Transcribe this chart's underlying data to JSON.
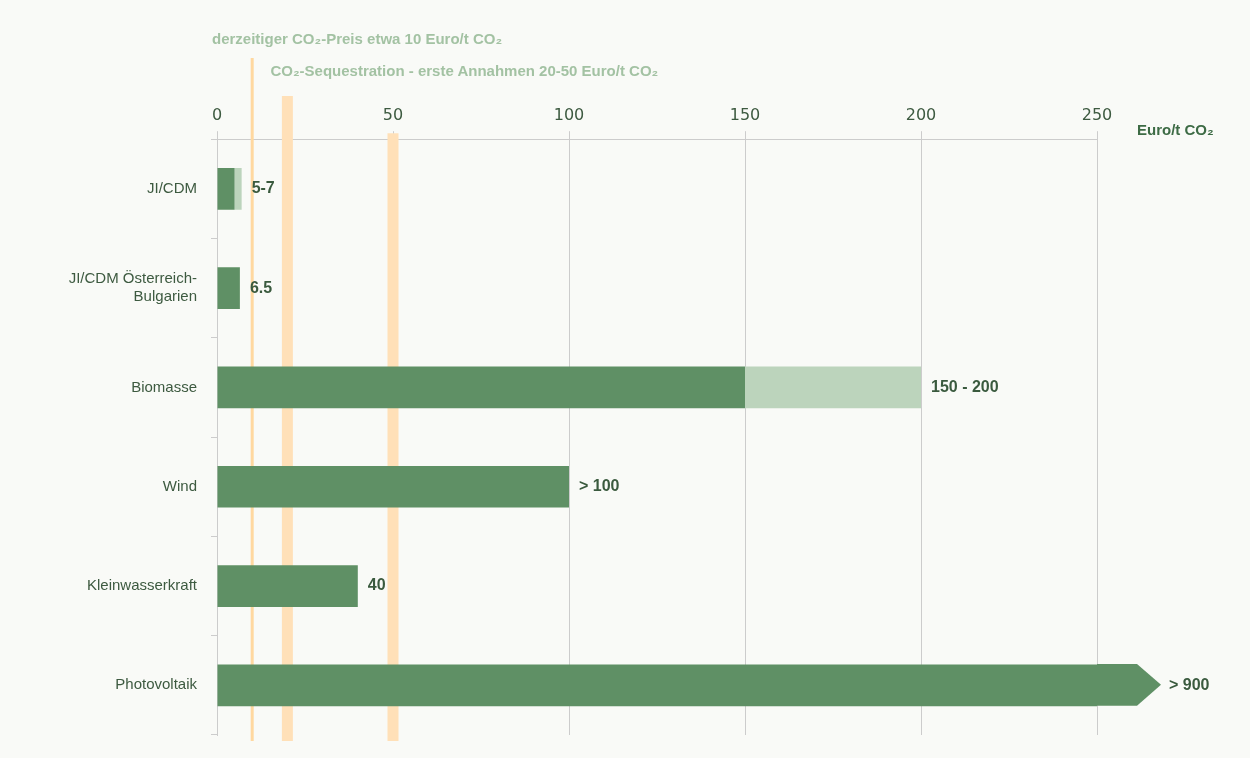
{
  "chart_data": {
    "type": "bar",
    "orientation": "horizontal",
    "stacked": true,
    "xlabel": "Euro/t CO₂",
    "categories": [
      "JI/CDM",
      "JI/CDM Österreich-Bulgarien",
      "Biomasse",
      "Wind",
      "Kleinwasserkraft",
      "Photovoltaik"
    ],
    "series": [
      {
        "color": "#5f9065",
        "values": [
          5,
          6.5,
          150,
          100,
          40,
          250
        ],
        "value_labels": [
          null,
          "6.5",
          null,
          "> 100",
          "40",
          null
        ]
      },
      {
        "color": "#bcd4bc",
        "values": [
          2,
          null,
          50,
          null,
          null,
          null
        ]
      }
    ],
    "annotations": [
      {
        "text": "5-7",
        "x": 7,
        "y": "JI/CDM"
      },
      {
        "text": "150 - 200",
        "x": 200,
        "y": "Biomasse"
      },
      "> 900"
    ],
    "xlim": [
      0,
      250
    ],
    "xticks": [
      0,
      50,
      100,
      150,
      200,
      250
    ],
    "grid": "x",
    "ref_lines": [
      {
        "axis": "x",
        "value": 10,
        "label": "derzeitiger CO₂-Preis etwa 10 Euro/t CO₂",
        "color": "#ffd8a0"
      },
      {
        "axis": "x",
        "value": 20,
        "label": "CO₂-Sequestration - erste Annahmen 20-50 Euro/t CO₂",
        "color": "#ffe0b8"
      },
      {
        "axis": "x",
        "value": 50,
        "color": "#ffe0b8"
      }
    ]
  }
}
